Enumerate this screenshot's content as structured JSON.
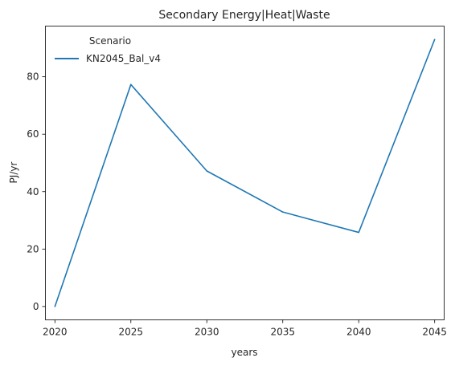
{
  "chart_data": {
    "type": "line",
    "title": "Secondary Energy|Heat|Waste",
    "xlabel": "years",
    "ylabel": "PJ/yr",
    "x": [
      2020,
      2025,
      2030,
      2035,
      2040,
      2045
    ],
    "xticks": [
      "2020",
      "2025",
      "2030",
      "2035",
      "2040",
      "2045"
    ],
    "yticks": [
      "0",
      "20",
      "40",
      "60",
      "80"
    ],
    "xlim": [
      2019.375,
      2045.625
    ],
    "ylim": [
      -4.65,
      97.65
    ],
    "grid": false,
    "legend": {
      "title": "Scenario",
      "placement": "top-left"
    },
    "series": [
      {
        "name": "KN2045_Bal_v4",
        "color": "#1f77b4",
        "values": [
          0,
          77.3,
          47.2,
          32.9,
          25.8,
          93.0
        ]
      }
    ]
  }
}
